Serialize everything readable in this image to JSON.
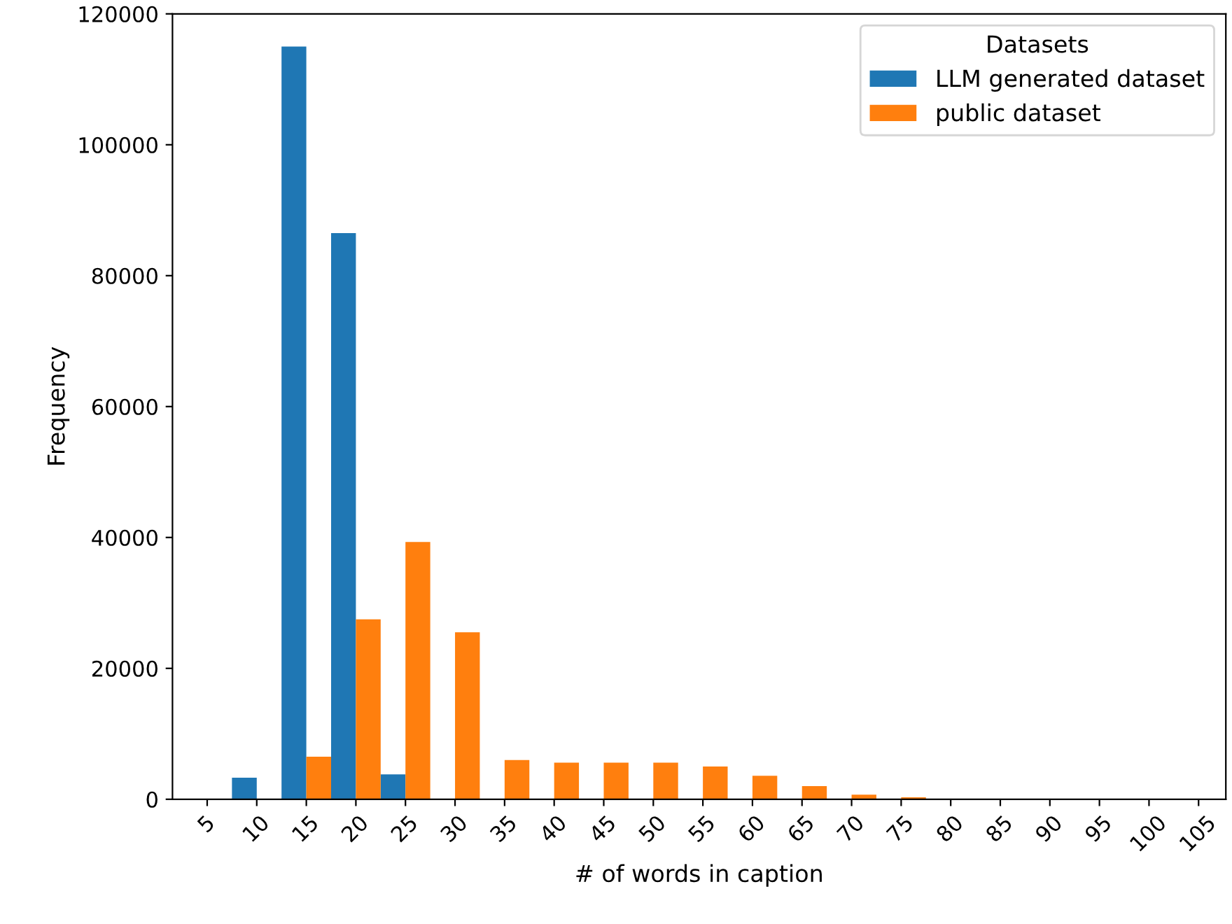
{
  "chart_data": {
    "type": "bar",
    "xlabel": "# of words in caption",
    "ylabel": "Frequency",
    "legend_title": "Datasets",
    "categories": [
      "5",
      "10",
      "15",
      "20",
      "25",
      "30",
      "35",
      "40",
      "45",
      "50",
      "55",
      "60",
      "65",
      "70",
      "75",
      "80",
      "85",
      "90",
      "95",
      "100",
      "105"
    ],
    "series": [
      {
        "name": "LLM generated dataset",
        "color": "#1f77b4",
        "values": [
          0,
          3300,
          115000,
          86500,
          3800,
          0,
          0,
          0,
          0,
          0,
          0,
          0,
          0,
          0,
          0,
          0,
          0,
          0,
          0,
          0,
          0
        ]
      },
      {
        "name": "public dataset",
        "color": "#ff7f0e",
        "values": [
          0,
          0,
          6500,
          27500,
          39300,
          25500,
          6000,
          5600,
          5600,
          5600,
          5000,
          3600,
          2000,
          700,
          300,
          0,
          0,
          0,
          0,
          0,
          0
        ]
      }
    ],
    "ylim": [
      0,
      120000
    ],
    "yticks": [
      0,
      20000,
      40000,
      60000,
      80000,
      100000,
      120000
    ],
    "grid": false,
    "legend": "top right"
  }
}
